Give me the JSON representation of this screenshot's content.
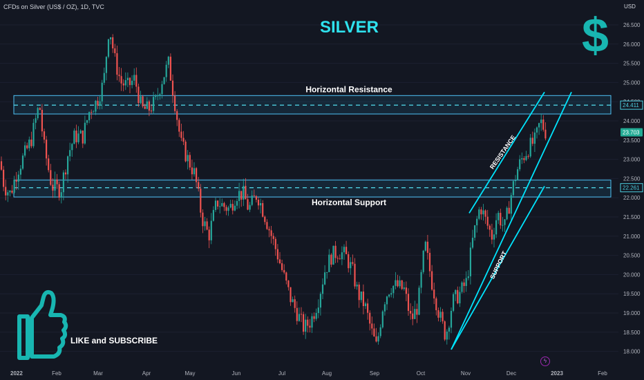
{
  "header": {
    "symbol_line": "CFDs on Silver (US$ / OZ), 1D, TVC"
  },
  "title": "SILVER",
  "cta_text": "LIKE and SUBSCRIBE",
  "colors": {
    "bg": "#131722",
    "up": "#26a69a",
    "down": "#ef5350",
    "accent": "#2fe2ee",
    "line": "#00e5ff"
  },
  "icons": [
    "thumbs-up-icon",
    "dollar-icon",
    "lightning-icon"
  ],
  "chart_data": {
    "type": "candlestick",
    "y_axis": {
      "label": "USD",
      "ylim": [
        17.85,
        26.95
      ],
      "ticks": [
        "26.500",
        "26.000",
        "25.500",
        "25.000",
        "24.500",
        "24.000",
        "23.500",
        "23.000",
        "22.500",
        "22.000",
        "21.500",
        "21.000",
        "20.500",
        "20.000",
        "19.500",
        "19.000",
        "18.500",
        "18.000"
      ]
    },
    "x_axis": {
      "ticks": [
        "2022",
        "Feb",
        "Mar",
        "Apr",
        "May",
        "Jun",
        "Jul",
        "Aug",
        "Sep",
        "Oct",
        "Nov",
        "Dec",
        "2023",
        "Feb"
      ]
    },
    "price_labels": [
      {
        "text": "24.411",
        "value": 24.411,
        "style": "box"
      },
      {
        "text": "23.703",
        "value": 23.703,
        "style": "current"
      },
      {
        "text": "22.261",
        "value": 22.261,
        "style": "box"
      }
    ],
    "zones": [
      {
        "label": "Horizontal Resistance",
        "low": 24.18,
        "high": 24.66,
        "line": 24.411
      },
      {
        "label": "Horizontal Support",
        "low": 22.02,
        "high": 22.46,
        "line": 22.261
      }
    ],
    "channel": {
      "resistance_label": "RESISTANCE",
      "support_label": "SUPPORT",
      "upper": {
        "from": [
          "Nov",
          21.6
        ],
        "to": [
          "Dec",
          24.75
        ]
      },
      "lower": {
        "from": [
          "Oct",
          18.05
        ],
        "to": [
          "Dec",
          22.3
        ]
      },
      "lower_extended": {
        "from": [
          "Oct",
          18.05
        ],
        "to": [
          "Dec",
          24.75
        ]
      }
    },
    "path": [
      [
        0,
        22.95
      ],
      [
        6,
        22.3
      ],
      [
        15,
        22.1
      ],
      [
        25,
        22.7
      ],
      [
        45,
        23.5
      ],
      [
        57,
        24.45
      ],
      [
        63,
        23.4
      ],
      [
        75,
        22.3
      ],
      [
        88,
        22.2
      ],
      [
        98,
        23.1
      ],
      [
        108,
        23.6
      ],
      [
        120,
        23.6
      ],
      [
        130,
        24.3
      ],
      [
        140,
        24.5
      ],
      [
        150,
        25.0
      ],
      [
        158,
        26.5
      ],
      [
        166,
        25.6
      ],
      [
        175,
        25.0
      ],
      [
        185,
        24.9
      ],
      [
        195,
        25.1
      ],
      [
        205,
        24.3
      ],
      [
        215,
        24.3
      ],
      [
        225,
        24.5
      ],
      [
        235,
        25.1
      ],
      [
        244,
        25.5
      ],
      [
        252,
        24.6
      ],
      [
        262,
        23.4
      ],
      [
        272,
        23.0
      ],
      [
        282,
        22.6
      ],
      [
        292,
        21.5
      ],
      [
        302,
        21.0
      ],
      [
        314,
        21.9
      ],
      [
        322,
        21.8
      ],
      [
        332,
        21.7
      ],
      [
        342,
        22.1
      ],
      [
        352,
        22.1
      ],
      [
        360,
        21.7
      ],
      [
        372,
        22.1
      ],
      [
        382,
        21.6
      ],
      [
        393,
        21.0
      ],
      [
        402,
        20.5
      ],
      [
        410,
        20.0
      ],
      [
        420,
        19.4
      ],
      [
        430,
        19.0
      ],
      [
        440,
        18.6
      ],
      [
        450,
        18.8
      ],
      [
        460,
        19.3
      ],
      [
        470,
        20.1
      ],
      [
        480,
        20.5
      ],
      [
        490,
        20.6
      ],
      [
        500,
        20.5
      ],
      [
        510,
        20.1
      ],
      [
        518,
        19.5
      ],
      [
        528,
        19.2
      ],
      [
        538,
        18.5
      ],
      [
        545,
        18.1
      ],
      [
        555,
        19.3
      ],
      [
        565,
        19.7
      ],
      [
        575,
        19.7
      ],
      [
        585,
        19.6
      ],
      [
        595,
        18.8
      ],
      [
        605,
        19.2
      ],
      [
        615,
        20.8
      ],
      [
        625,
        19.8
      ],
      [
        635,
        19.0
      ],
      [
        645,
        18.4
      ],
      [
        655,
        19.3
      ],
      [
        665,
        19.5
      ],
      [
        675,
        19.8
      ],
      [
        685,
        21.0
      ],
      [
        695,
        21.8
      ],
      [
        705,
        21.3
      ],
      [
        712,
        21.0
      ],
      [
        720,
        21.6
      ],
      [
        730,
        21.2
      ],
      [
        740,
        22.1
      ],
      [
        748,
        22.7
      ],
      [
        755,
        23.0
      ],
      [
        765,
        23.3
      ],
      [
        775,
        23.5
      ],
      [
        782,
        24.0
      ],
      [
        790,
        23.7
      ]
    ]
  }
}
